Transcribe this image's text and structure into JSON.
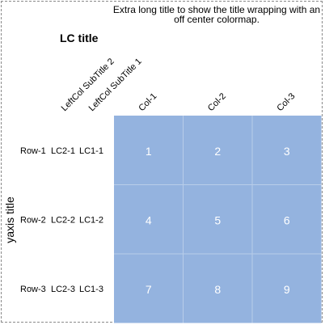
{
  "chart_data": {
    "type": "heatmap",
    "title": "Extra long title to show the title wrapping with an off center colormap.",
    "title_lines": [
      "Extra long title to show the title wrapping with an",
      "off center colormap."
    ],
    "left_columns_title": "LC title",
    "ylabel": "yaxis title",
    "column_labels": [
      "Col-1",
      "Col-2",
      "Col-3"
    ],
    "left_column_subtitles": [
      "LeftCol SubTitle 2",
      "LeftCol SubTitle 1"
    ],
    "rows": [
      {
        "label": "Row-1",
        "lc2": "LC2-1",
        "lc1": "LC1-1",
        "values": [
          1,
          2,
          3
        ]
      },
      {
        "label": "Row-2",
        "lc2": "LC2-2",
        "lc1": "LC1-2",
        "values": [
          4,
          5,
          6
        ]
      },
      {
        "label": "Row-3",
        "lc2": "LC2-3",
        "lc1": "LC1-3",
        "values": [
          7,
          8,
          9
        ]
      }
    ],
    "cell_color": "#94b3df",
    "grid_color": "#b8cde9",
    "value_text_color": "#ffffff"
  }
}
